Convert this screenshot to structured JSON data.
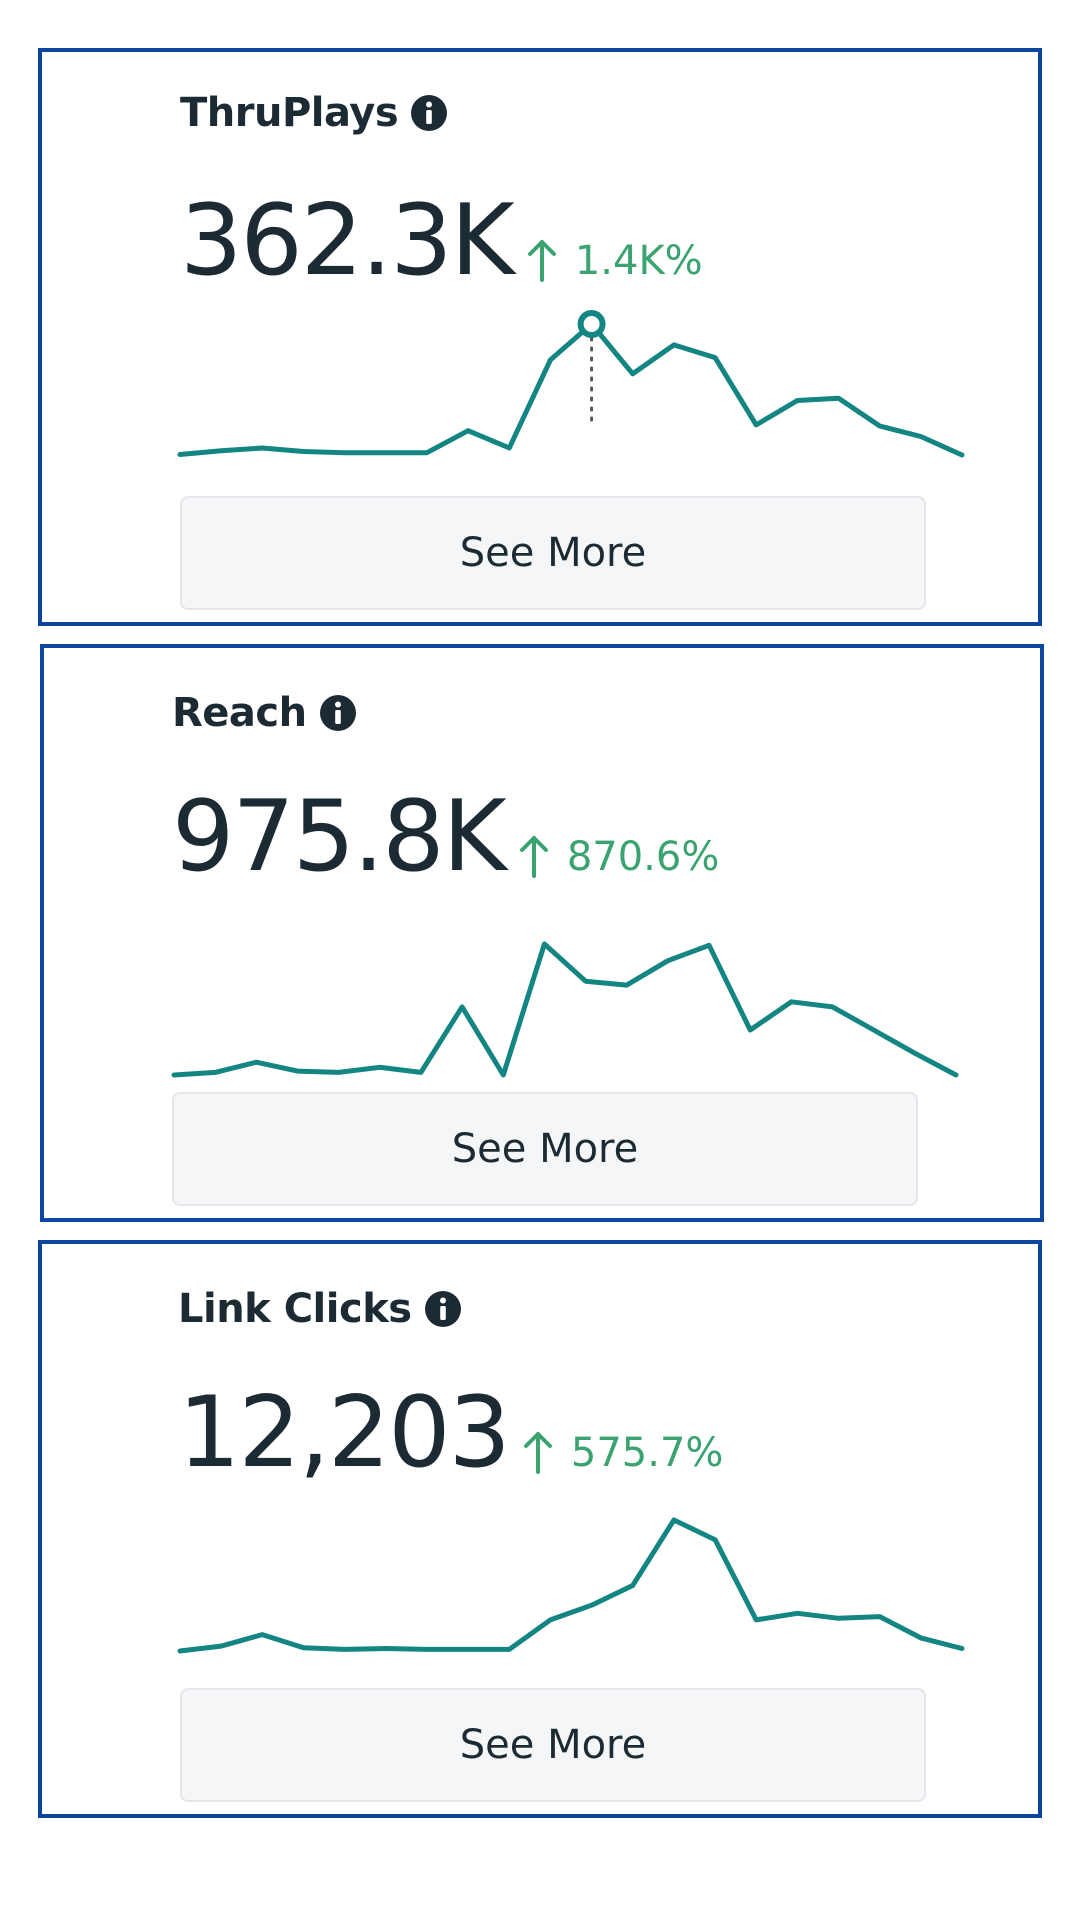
{
  "colors": {
    "frame": "#0b47a1",
    "line": "#138582",
    "positive": "#3aa36f",
    "text": "#1c2b33",
    "button_bg": "#f5f6f7"
  },
  "cards": [
    {
      "title": "ThruPlays",
      "value": "362.3K",
      "delta": "1.4K%",
      "delta_direction": "up",
      "button_label": "See More",
      "icons": [
        "info-icon",
        "arrow-up-icon"
      ],
      "chart_data": {
        "type": "line",
        "values": [
          0.2,
          1.8,
          3.0,
          1.5,
          1.0,
          1.0,
          1.0,
          10.5,
          3.0,
          41,
          56.5,
          35,
          47.5,
          42,
          13,
          23.5,
          24.5,
          12.5,
          8,
          0
        ],
        "highlight_index": 10
      }
    },
    {
      "title": "Reach",
      "value": "975.8K",
      "delta": "870.6%",
      "delta_direction": "up",
      "button_label": "See More",
      "icons": [
        "info-icon",
        "arrow-up-icon"
      ],
      "chart_data": {
        "type": "line",
        "values": [
          0.5,
          1.5,
          5.5,
          2,
          1.5,
          3.5,
          1.5,
          27,
          0.5,
          51.5,
          37,
          35.5,
          45,
          51,
          18,
          29,
          27,
          18,
          9,
          0.5
        ]
      }
    },
    {
      "title": "Link Clicks",
      "value": "12,203",
      "delta": "575.7%",
      "delta_direction": "up",
      "button_label": "See More",
      "icons": [
        "info-icon",
        "arrow-up-icon"
      ],
      "chart_data": {
        "type": "line",
        "values": [
          0,
          3,
          10,
          2,
          1,
          1.5,
          1,
          1,
          1,
          19,
          28,
          40,
          80,
          68,
          19,
          23,
          20,
          21,
          8,
          1.5
        ]
      }
    }
  ]
}
